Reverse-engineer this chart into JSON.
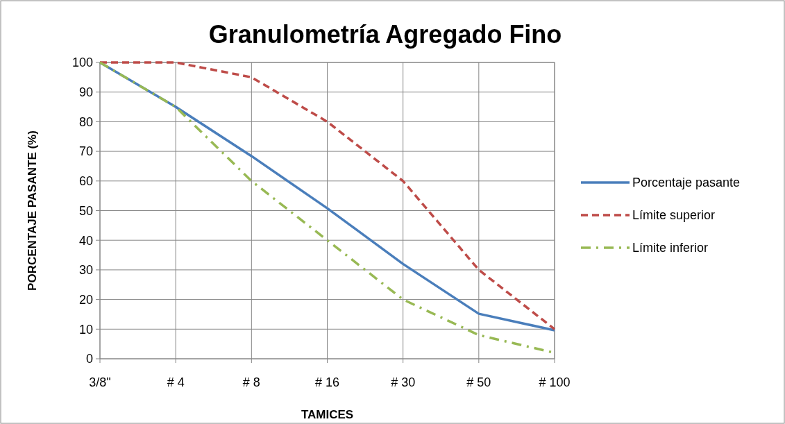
{
  "chart_data": {
    "type": "line",
    "title": "Granulometría Agregado Fino",
    "xlabel": "TAMICES",
    "ylabel": "PORCENTAJE PASANTE (%)",
    "categories": [
      "3/8\"",
      "# 4",
      "# 8",
      "# 16",
      "# 30",
      "# 50",
      "# 100"
    ],
    "series": [
      {
        "name": "Porcentaje pasante",
        "color": "#4a7ebb",
        "values": [
          100,
          85,
          68.4,
          50.8,
          32,
          15.2,
          9.6
        ],
        "line_style": "solid"
      },
      {
        "name": "Límite superior",
        "color": "#be4b48",
        "values": [
          100,
          100,
          95,
          80,
          60,
          30,
          10
        ],
        "line_style": "dashed"
      },
      {
        "name": "Límite inferior",
        "color": "#98b954",
        "values": [
          100,
          85,
          60,
          40,
          20,
          8,
          2
        ],
        "line_style": "dashdot"
      }
    ],
    "ylim": [
      0,
      100
    ],
    "yticks": [
      0,
      10,
      20,
      30,
      40,
      50,
      60,
      70,
      80,
      90,
      100
    ],
    "grid": true,
    "legend": "right",
    "marker": "none"
  }
}
